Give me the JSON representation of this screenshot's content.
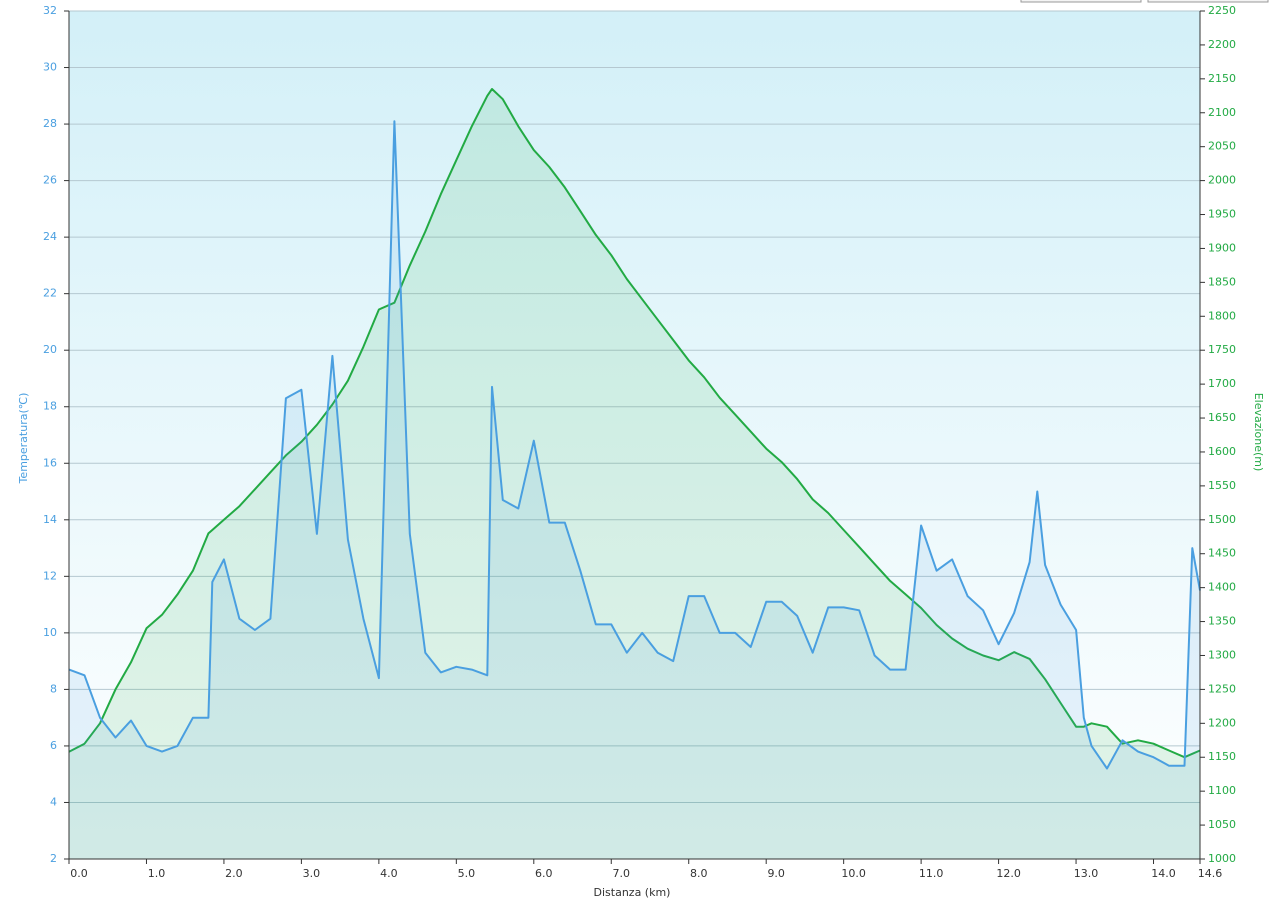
{
  "chart_data": {
    "type": "line",
    "xlabel": "Distanza  (km)",
    "ylabel": "Temperatura(℃)",
    "y2label": "Elevazione(m)",
    "x": [
      0,
      0.2,
      0.4,
      0.6,
      0.8,
      1,
      1.2,
      1.4,
      1.6,
      1.8,
      1.85,
      2,
      2.2,
      2.4,
      2.6,
      2.8,
      3,
      3.2,
      3.4,
      3.6,
      3.8,
      4,
      4.2,
      4.4,
      4.6,
      4.8,
      5,
      5.2,
      5.4,
      5.46,
      5.6,
      5.8,
      6,
      6.2,
      6.4,
      6.6,
      6.8,
      7,
      7.2,
      7.4,
      7.6,
      7.8,
      8,
      8.2,
      8.4,
      8.6,
      8.8,
      9,
      9.2,
      9.4,
      9.6,
      9.8,
      10,
      10.2,
      10.4,
      10.6,
      10.8,
      11,
      11.2,
      11.4,
      11.6,
      11.8,
      12,
      12.2,
      12.4,
      12.5,
      12.6,
      12.8,
      13,
      13.1,
      13.2,
      13.4,
      13.6,
      13.8,
      14,
      14.2,
      14.4,
      14.5,
      14.6
    ],
    "series": [
      {
        "name": "Elevazione",
        "color": "#22aa44",
        "axis": "y2",
        "values": [
          1158,
          1170,
          1200,
          1250,
          1290,
          1340,
          1360,
          1390,
          1425,
          1480,
          1485,
          1500,
          1520,
          1545,
          1570,
          1595,
          1615,
          1640,
          1670,
          1705,
          1755,
          1810,
          1820,
          1875,
          1925,
          1980,
          2030,
          2080,
          2125,
          2135,
          2120,
          2080,
          2045,
          2020,
          1990,
          1955,
          1920,
          1890,
          1855,
          1825,
          1795,
          1765,
          1735,
          1710,
          1680,
          1655,
          1630,
          1605,
          1585,
          1560,
          1530,
          1510,
          1485,
          1460,
          1435,
          1410,
          1390,
          1370,
          1345,
          1325,
          1310,
          1300,
          1293,
          1305,
          1295,
          1280,
          1265,
          1230,
          1195,
          1195,
          1200,
          1195,
          1170,
          1175,
          1170,
          1160,
          1150,
          1155,
          1160
        ]
      },
      {
        "name": "Temperatura",
        "color": "#4a9fe0",
        "values": [
          8.7,
          8.5,
          7.0,
          6.3,
          6.9,
          6.0,
          5.8,
          6.0,
          7.0,
          7.0,
          11.8,
          12.6,
          10.5,
          10.1,
          10.5,
          18.3,
          18.6,
          13.5,
          19.8,
          13.3,
          10.5,
          8.4,
          28.1,
          13.5,
          9.3,
          8.6,
          8.8,
          8.7,
          8.5,
          18.7,
          14.7,
          14.4,
          16.8,
          13.9,
          13.9,
          12.2,
          10.3,
          10.3,
          9.3,
          10.0,
          9.3,
          9.0,
          11.3,
          11.3,
          10.0,
          10.0,
          9.5,
          11.1,
          11.1,
          10.6,
          9.3,
          10.9,
          10.9,
          10.8,
          9.2,
          8.7,
          8.7,
          13.8,
          12.2,
          12.6,
          11.3,
          10.8,
          9.6,
          10.7,
          12.5,
          15.0,
          12.4,
          11.0,
          10.1,
          7.0,
          6.0,
          5.2,
          6.2,
          5.8,
          5.6,
          5.3,
          5.3,
          13.0,
          11.5
        ]
      }
    ],
    "xlim": [
      0,
      14.6
    ],
    "xticks": [
      {
        "value": 0,
        "label": "0.0"
      },
      {
        "value": 1,
        "label": "1.0"
      },
      {
        "value": 2,
        "label": "2.0"
      },
      {
        "value": 3,
        "label": "3.0"
      },
      {
        "value": 4,
        "label": "4.0"
      },
      {
        "value": 5,
        "label": "5.0"
      },
      {
        "value": 6,
        "label": "6.0"
      },
      {
        "value": 7,
        "label": "7.0"
      },
      {
        "value": 8,
        "label": "8.0"
      },
      {
        "value": 9,
        "label": "9.0"
      },
      {
        "value": 10,
        "label": "10.0"
      },
      {
        "value": 11,
        "label": "11.0"
      },
      {
        "value": 12,
        "label": "12.0"
      },
      {
        "value": 13,
        "label": "13.0"
      },
      {
        "value": 14,
        "label": "14.0"
      },
      14.6
    ],
    "ylim": [
      2,
      32
    ],
    "yticks": [
      2,
      4,
      6,
      8,
      10,
      12,
      14,
      16,
      18,
      20,
      22,
      24,
      26,
      28,
      30,
      32
    ],
    "y2lim": [
      1000,
      2250
    ],
    "y2ticks": [
      1000,
      1050,
      1100,
      1150,
      1200,
      1250,
      1300,
      1350,
      1400,
      1450,
      1500,
      1550,
      1600,
      1650,
      1700,
      1750,
      1800,
      1850,
      1900,
      1950,
      2000,
      2050,
      2100,
      2150,
      2200,
      2250
    ],
    "grid": true
  }
}
